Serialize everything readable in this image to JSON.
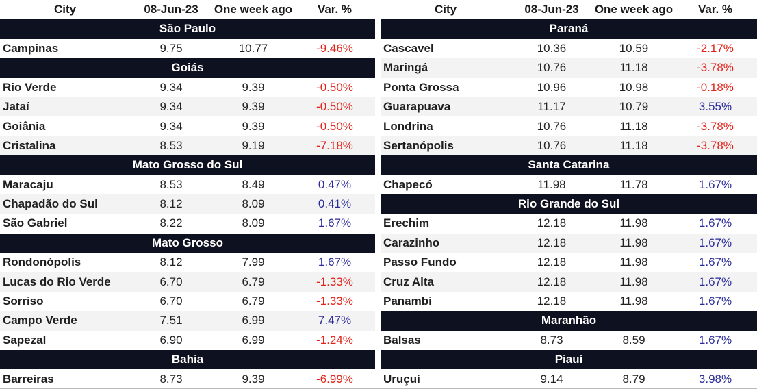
{
  "headers": {
    "city": "City",
    "date": "08-Jun-23",
    "prev": "One week ago",
    "var": "Var. %"
  },
  "colors": {
    "negative": "#e2231a",
    "positive": "#2b2b9a",
    "group_bg": "#0e1120"
  },
  "left": [
    {
      "state": "São Paulo",
      "rows": [
        {
          "city": "Campinas",
          "current": "9.75",
          "prev": "10.77",
          "var": "-9.46%"
        }
      ]
    },
    {
      "state": "Goiás",
      "rows": [
        {
          "city": "Rio Verde",
          "current": "9.34",
          "prev": "9.39",
          "var": "-0.50%"
        },
        {
          "city": "Jataí",
          "current": "9.34",
          "prev": "9.39",
          "var": "-0.50%"
        },
        {
          "city": "Goiânia",
          "current": "9.34",
          "prev": "9.39",
          "var": "-0.50%"
        },
        {
          "city": "Cristalina",
          "current": "8.53",
          "prev": "9.19",
          "var": "-7.18%"
        }
      ]
    },
    {
      "state": "Mato Grosso do Sul",
      "rows": [
        {
          "city": "Maracaju",
          "current": "8.53",
          "prev": "8.49",
          "var": "0.47%"
        },
        {
          "city": "Chapadão do Sul",
          "current": "8.12",
          "prev": "8.09",
          "var": "0.41%"
        },
        {
          "city": "São Gabriel",
          "current": "8.22",
          "prev": "8.09",
          "var": "1.67%"
        }
      ]
    },
    {
      "state": "Mato Grosso",
      "rows": [
        {
          "city": "Rondonópolis",
          "current": "8.12",
          "prev": "7.99",
          "var": "1.67%"
        },
        {
          "city": "Lucas do Rio Verde",
          "current": "6.70",
          "prev": "6.79",
          "var": "-1.33%"
        },
        {
          "city": "Sorriso",
          "current": "6.70",
          "prev": "6.79",
          "var": "-1.33%"
        },
        {
          "city": "Campo Verde",
          "current": "7.51",
          "prev": "6.99",
          "var": "7.47%"
        },
        {
          "city": "Sapezal",
          "current": "6.90",
          "prev": "6.99",
          "var": "-1.24%"
        }
      ]
    },
    {
      "state": "Bahia",
      "rows": [
        {
          "city": "Barreiras",
          "current": "8.73",
          "prev": "9.39",
          "var": "-6.99%"
        }
      ]
    }
  ],
  "right": [
    {
      "state": "Paraná",
      "rows": [
        {
          "city": "Cascavel",
          "current": "10.36",
          "prev": "10.59",
          "var": "-2.17%"
        },
        {
          "city": "Maringá",
          "current": "10.76",
          "prev": "11.18",
          "var": "-3.78%"
        },
        {
          "city": "Ponta Grossa",
          "current": "10.96",
          "prev": "10.98",
          "var": "-0.18%"
        },
        {
          "city": "Guarapuava",
          "current": "11.17",
          "prev": "10.79",
          "var": "3.55%"
        },
        {
          "city": "Londrina",
          "current": "10.76",
          "prev": "11.18",
          "var": "-3.78%"
        },
        {
          "city": "Sertanópolis",
          "current": "10.76",
          "prev": "11.18",
          "var": "-3.78%"
        }
      ]
    },
    {
      "state": "Santa Catarina",
      "rows": [
        {
          "city": "Chapecó",
          "current": "11.98",
          "prev": "11.78",
          "var": "1.67%"
        }
      ]
    },
    {
      "state": "Rio Grande do Sul",
      "rows": [
        {
          "city": "Erechim",
          "current": "12.18",
          "prev": "11.98",
          "var": "1.67%"
        },
        {
          "city": "Carazinho",
          "current": "12.18",
          "prev": "11.98",
          "var": "1.67%"
        },
        {
          "city": "Passo Fundo",
          "current": "12.18",
          "prev": "11.98",
          "var": "1.67%"
        },
        {
          "city": "Cruz Alta",
          "current": "12.18",
          "prev": "11.98",
          "var": "1.67%"
        },
        {
          "city": "Panambi",
          "current": "12.18",
          "prev": "11.98",
          "var": "1.67%"
        }
      ]
    },
    {
      "state": "Maranhão",
      "rows": [
        {
          "city": "Balsas",
          "current": "8.73",
          "prev": "8.59",
          "var": "1.67%"
        }
      ]
    },
    {
      "state": "Piauí",
      "rows": [
        {
          "city": "Uruçuí",
          "current": "9.14",
          "prev": "8.79",
          "var": "3.98%"
        }
      ]
    }
  ]
}
